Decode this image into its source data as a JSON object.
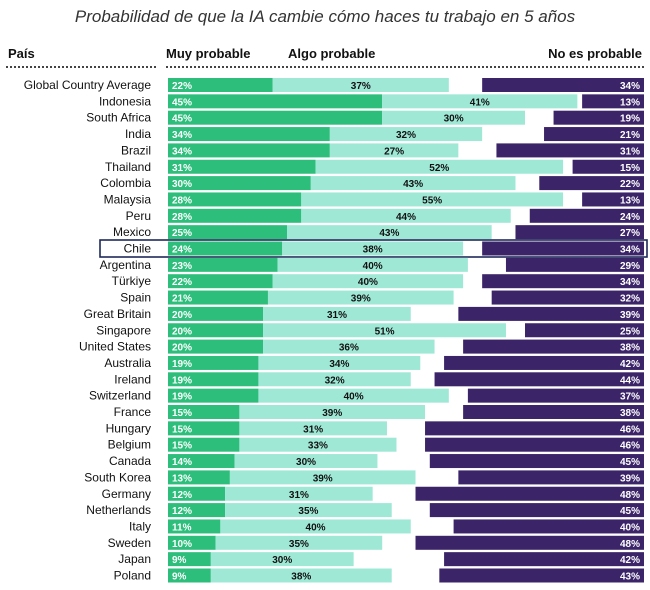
{
  "chart_data": {
    "type": "bar",
    "orientation": "horizontal",
    "stacked": true,
    "title": "Probabilidad de que la IA cambie cómo haces tu trabajo en 5 años",
    "column_headers": {
      "country": "País",
      "very_likely": "Muy probable",
      "somewhat_likely": "Algo probable",
      "not_likely": "No es probable"
    },
    "highlight": "Chile",
    "colors": {
      "very_likely": "#2dbe7c",
      "somewhat_likely": "#9fe8d6",
      "not_likely": "#3b2468",
      "highlight_border": "#1f2a5a"
    },
    "xlim": [
      0,
      100
    ],
    "categories": [
      "Global Country Average",
      "Indonesia",
      "South Africa",
      "India",
      "Brazil",
      "Thailand",
      "Colombia",
      "Malaysia",
      "Peru",
      "Mexico",
      "Chile",
      "Argentina",
      "Türkiye",
      "Spain",
      "Great Britain",
      "Singapore",
      "United States",
      "Australia",
      "Ireland",
      "Switzerland",
      "France",
      "Hungary",
      "Belgium",
      "Canada",
      "South Korea",
      "Germany",
      "Netherlands",
      "Italy",
      "Sweden",
      "Japan",
      "Poland"
    ],
    "series": [
      {
        "name": "Muy probable",
        "values": [
          22,
          45,
          45,
          34,
          34,
          31,
          30,
          28,
          28,
          25,
          24,
          23,
          22,
          21,
          20,
          20,
          20,
          19,
          19,
          19,
          15,
          15,
          15,
          14,
          13,
          12,
          12,
          11,
          10,
          9,
          9
        ]
      },
      {
        "name": "Algo probable",
        "values": [
          37,
          41,
          30,
          32,
          27,
          52,
          43,
          55,
          44,
          43,
          38,
          40,
          40,
          39,
          31,
          51,
          36,
          34,
          32,
          40,
          39,
          31,
          33,
          30,
          39,
          31,
          35,
          40,
          35,
          30,
          38
        ]
      },
      {
        "name": "No es probable",
        "values": [
          34,
          13,
          19,
          21,
          31,
          15,
          22,
          13,
          24,
          27,
          34,
          29,
          34,
          32,
          39,
          25,
          38,
          42,
          44,
          37,
          38,
          46,
          46,
          45,
          39,
          48,
          45,
          40,
          48,
          42,
          43
        ]
      }
    ],
    "value_suffix": "%"
  }
}
